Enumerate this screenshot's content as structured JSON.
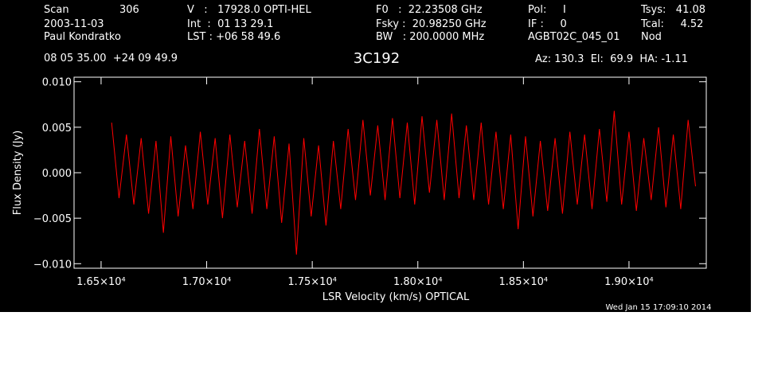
{
  "chart_data": {
    "type": "line",
    "title": "3C192",
    "header": [
      "Scan",
      "306",
      "2003-11-03",
      "Paul Kondratko",
      "V   :   17928.0 OPTI-HEL",
      "Int  :  01 13 29.1",
      "LST : +06 58 49.6",
      "F0   :  22.23508 GHz",
      "Fsky :  20.98250 GHz",
      "BW   : 200.0000 MHz",
      "Pol:     I",
      "IF :     0",
      "AGBT02C_045_01",
      "Tsys:   41.08",
      "Tcal:     4.52",
      "Nod",
      "08 05 35.00  +24 09 49.9",
      "Az: 130.3  El:  69.9  HA: -1.11"
    ],
    "xlabel": "LSR Velocity (km/s) OPTICAL",
    "ylabel": "Flux Density (Jy)",
    "timestamp": "Wed Jan 15 17:09:10 2014",
    "xlim": [
      16372,
      19366
    ],
    "ylim": [
      -0.0105,
      0.0105
    ],
    "xticks": [
      {
        "value": 16500,
        "label": "1.65×10⁴"
      },
      {
        "value": 17000,
        "label": "1.70×10⁴"
      },
      {
        "value": 17500,
        "label": "1.75×10⁴"
      },
      {
        "value": 18000,
        "label": "1.80×10⁴"
      },
      {
        "value": 18500,
        "label": "1.85×10⁴"
      },
      {
        "value": 19000,
        "label": "1.90×10⁴"
      }
    ],
    "yticks": [
      {
        "value": 0.01,
        "label": "0.010"
      },
      {
        "value": 0.005,
        "label": "0.005"
      },
      {
        "value": 0,
        "label": "0.000"
      },
      {
        "value": -0.005,
        "label": "−0.005"
      },
      {
        "value": -0.01,
        "label": "−0.010"
      }
    ],
    "series": [
      {
        "color": "#ff0000",
        "x": [
          16550,
          16585,
          16620,
          16655,
          16690,
          16725,
          16760,
          16795,
          16830,
          16865,
          16900,
          16935,
          16970,
          17005,
          17040,
          17075,
          17110,
          17145,
          17180,
          17215,
          17250,
          17285,
          17320,
          17355,
          17390,
          17425,
          17460,
          17495,
          17530,
          17565,
          17600,
          17635,
          17670,
          17705,
          17740,
          17775,
          17810,
          17845,
          17880,
          17915,
          17950,
          17985,
          18020,
          18055,
          18090,
          18125,
          18160,
          18195,
          18230,
          18265,
          18300,
          18335,
          18370,
          18405,
          18440,
          18475,
          18510,
          18545,
          18580,
          18615,
          18650,
          18685,
          18720,
          18755,
          18790,
          18825,
          18860,
          18895,
          18930,
          18965,
          19000,
          19035,
          19070,
          19105,
          19140,
          19175,
          19210,
          19245,
          19280,
          19315
        ],
        "values": [
          0.0055,
          -0.0028,
          0.0042,
          -0.0035,
          0.0038,
          -0.0045,
          0.0035,
          -0.0066,
          0.004,
          -0.0048,
          0.003,
          -0.004,
          0.0045,
          -0.0035,
          0.0038,
          -0.005,
          0.0042,
          -0.0038,
          0.0035,
          -0.0045,
          0.0048,
          -0.004,
          0.004,
          -0.0055,
          0.0032,
          -0.009,
          0.0038,
          -0.0048,
          0.003,
          -0.0058,
          0.0035,
          -0.004,
          0.0048,
          -0.003,
          0.0058,
          -0.0025,
          0.0052,
          -0.003,
          0.006,
          -0.0028,
          0.0055,
          -0.0035,
          0.0062,
          -0.0022,
          0.0058,
          -0.003,
          0.0065,
          -0.0028,
          0.0052,
          -0.003,
          0.0055,
          -0.0035,
          0.0045,
          -0.004,
          0.0042,
          -0.0062,
          0.004,
          -0.0048,
          0.0035,
          -0.0042,
          0.0038,
          -0.0045,
          0.0045,
          -0.0035,
          0.0042,
          -0.004,
          0.0048,
          -0.0032,
          0.0068,
          -0.0035,
          0.0045,
          -0.0042,
          0.0038,
          -0.003,
          0.005,
          -0.0038,
          0.0042,
          -0.004,
          0.0058,
          -0.0015
        ]
      }
    ]
  }
}
